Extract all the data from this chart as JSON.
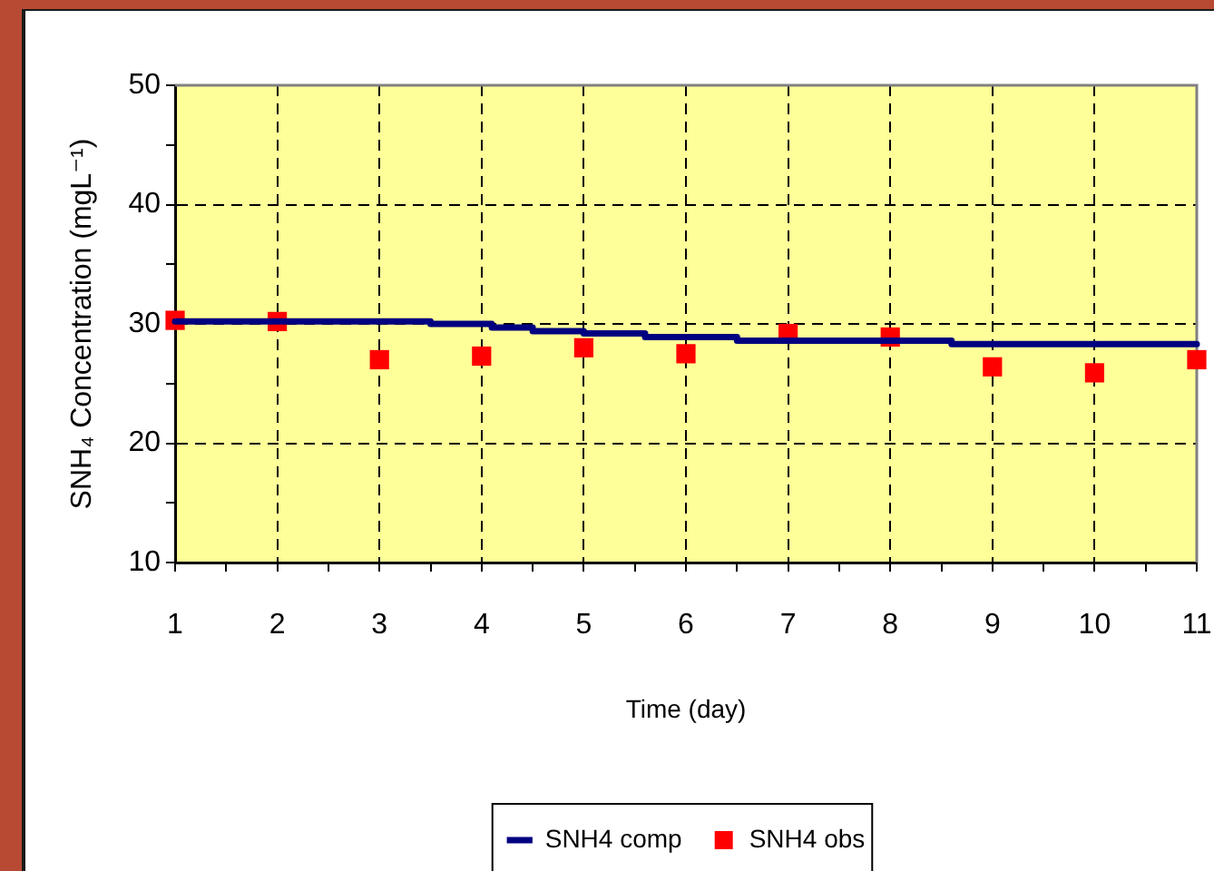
{
  "chart_data": {
    "type": "line",
    "xlabel": "Time (day)",
    "ylabel": "SNH₄ Concentration (mgL⁻¹)",
    "xlim": [
      1,
      11
    ],
    "xticks": [
      1,
      {
        "value": 1.5,
        "label": null
      },
      2,
      {
        "value": 2.5,
        "label": null
      },
      3,
      {
        "value": 3.5,
        "label": null
      },
      4,
      {
        "value": 4.5,
        "label": null
      },
      5,
      {
        "value": 5.5,
        "label": null
      },
      6,
      {
        "value": 6.5,
        "label": null
      },
      7,
      {
        "value": 7.5,
        "label": null
      },
      8,
      {
        "value": 8.5,
        "label": null
      },
      9,
      {
        "value": 9.5,
        "label": null
      },
      10,
      {
        "value": 10.5,
        "label": null
      },
      11
    ],
    "ylim": [
      10,
      50
    ],
    "yticks": [
      10,
      {
        "value": 15,
        "label": null
      },
      20,
      {
        "value": 25,
        "label": null
      },
      30,
      {
        "value": 35,
        "label": null
      },
      40,
      {
        "value": 45,
        "label": null
      },
      50
    ],
    "grid": true,
    "legend": "bottom",
    "series": [
      {
        "name": "SNH4 comp",
        "type": "step",
        "color": "#000080",
        "x": [
          1,
          3.5,
          4.1,
          4.5,
          5,
          5.6,
          6.5,
          8.6,
          11
        ],
        "values": [
          30.2,
          30.0,
          29.7,
          29.4,
          29.2,
          28.9,
          28.6,
          28.3,
          28.3
        ]
      },
      {
        "name": "SNH4 obs",
        "type": "scatter",
        "color": "#ff0000",
        "marker": "square",
        "x": [
          1,
          2,
          3,
          4,
          5,
          6,
          7,
          8,
          9,
          10,
          11
        ],
        "values": [
          30.3,
          30.2,
          27.0,
          27.3,
          28.0,
          27.5,
          29.2,
          28.9,
          26.4,
          25.9,
          27.0
        ]
      }
    ]
  }
}
